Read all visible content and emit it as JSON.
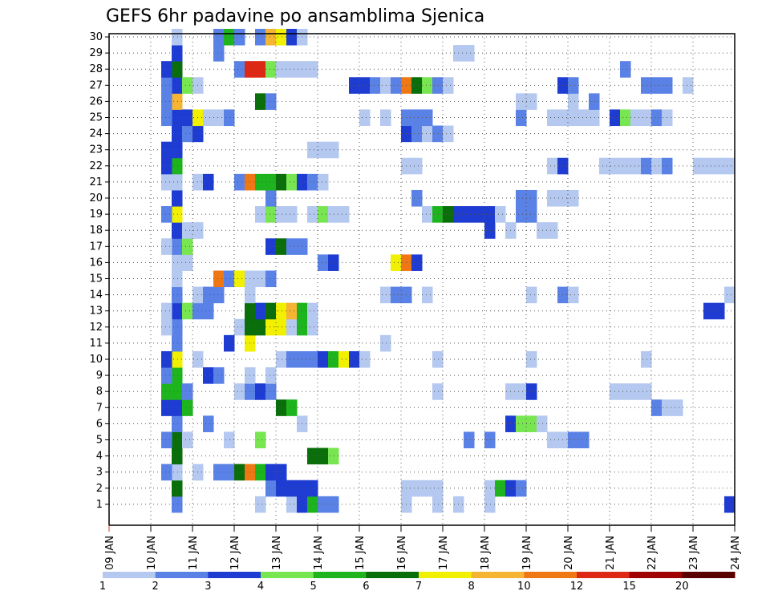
{
  "chart_data": {
    "type": "heatmap",
    "title": "GEFS 6hr padavine po ansamblima Sjenica",
    "x_ticks": [
      "09 JAN",
      "10 JAN",
      "11 JAN",
      "12 JAN",
      "13 JAN",
      "14 JAN",
      "15 JAN",
      "16 JAN",
      "17 JAN",
      "18 JAN",
      "19 JAN",
      "20 JAN",
      "21 JAN",
      "22 JAN",
      "23 JAN",
      "24 JAN"
    ],
    "y_ticks": [
      1,
      2,
      3,
      4,
      5,
      6,
      7,
      8,
      9,
      10,
      11,
      12,
      13,
      14,
      15,
      16,
      17,
      18,
      19,
      20,
      21,
      22,
      23,
      24,
      25,
      26,
      27,
      28,
      29,
      30
    ],
    "xlim": [
      "09 JAN",
      "24 JAN"
    ],
    "ylim": [
      0.5,
      30.5
    ],
    "grid": true,
    "colorbar": {
      "labels": [
        "1",
        "2",
        "3",
        "4",
        "5",
        "6",
        "7",
        "8",
        "10",
        "12",
        "15",
        "20"
      ],
      "colors": [
        "#b4c8f0",
        "#5a82e6",
        "#1e3cd2",
        "#78e650",
        "#1eb41e",
        "#0a6e0a",
        "#f0f000",
        "#f5b432",
        "#f07814",
        "#dc2814",
        "#a00000",
        "#5a0000"
      ]
    },
    "cell_level_ranges": "0-11 = index into colorbar.colors (0 lightest)",
    "cells": [
      [
        10.5,
        1,
        1
      ],
      [
        10.5,
        2,
        5
      ],
      [
        10.5,
        3,
        0
      ],
      [
        10.5,
        4,
        5
      ],
      [
        10.5,
        5,
        5
      ],
      [
        10.5,
        6,
        1
      ],
      [
        10.5,
        7,
        2
      ],
      [
        10.5,
        8,
        4
      ],
      [
        10.5,
        9,
        4
      ],
      [
        10.5,
        10,
        6
      ],
      [
        10.5,
        11,
        1
      ],
      [
        10.5,
        12,
        1
      ],
      [
        10.5,
        13,
        2
      ],
      [
        10.5,
        14,
        1
      ],
      [
        10.5,
        15,
        0
      ],
      [
        10.5,
        16,
        0
      ],
      [
        10.5,
        17,
        1
      ],
      [
        10.5,
        18,
        2
      ],
      [
        10.5,
        19,
        6
      ],
      [
        10.5,
        20,
        2
      ],
      [
        10.5,
        21,
        0
      ],
      [
        10.5,
        22,
        4
      ],
      [
        10.5,
        23,
        2
      ],
      [
        10.5,
        24,
        2
      ],
      [
        10.5,
        25,
        2
      ],
      [
        10.5,
        26,
        7
      ],
      [
        10.5,
        27,
        2
      ],
      [
        10.5,
        28,
        5
      ],
      [
        10.5,
        29,
        2
      ],
      [
        10.5,
        30,
        0
      ],
      [
        10.25,
        3,
        1
      ],
      [
        10.25,
        5,
        1
      ],
      [
        10.25,
        7,
        2
      ],
      [
        10.25,
        8,
        4
      ],
      [
        10.25,
        9,
        1
      ],
      [
        10.25,
        10,
        2
      ],
      [
        10.25,
        12,
        0
      ],
      [
        10.25,
        13,
        0
      ],
      [
        10.25,
        17,
        0
      ],
      [
        10.25,
        19,
        1
      ],
      [
        10.25,
        21,
        0
      ],
      [
        10.25,
        22,
        2
      ],
      [
        10.25,
        23,
        2
      ],
      [
        10.25,
        25,
        1
      ],
      [
        10.25,
        26,
        1
      ],
      [
        10.25,
        27,
        1
      ],
      [
        10.25,
        28,
        2
      ],
      [
        10.75,
        5,
        0
      ],
      [
        10.75,
        7,
        4
      ],
      [
        10.75,
        8,
        1
      ],
      [
        10.75,
        13,
        3
      ],
      [
        10.75,
        16,
        0
      ],
      [
        10.75,
        17,
        3
      ],
      [
        10.75,
        18,
        0
      ],
      [
        10.75,
        24,
        1
      ],
      [
        10.75,
        25,
        2
      ],
      [
        10.75,
        27,
        3
      ],
      [
        11.0,
        3,
        0
      ],
      [
        11.0,
        10,
        0
      ],
      [
        11.0,
        13,
        1
      ],
      [
        11.0,
        14,
        0
      ],
      [
        11.0,
        18,
        0
      ],
      [
        11.0,
        21,
        0
      ],
      [
        11.0,
        24,
        2
      ],
      [
        11.0,
        25,
        6
      ],
      [
        11.0,
        27,
        0
      ],
      [
        11.25,
        6,
        1
      ],
      [
        11.25,
        9,
        2
      ],
      [
        11.25,
        13,
        1
      ],
      [
        11.25,
        14,
        1
      ],
      [
        11.25,
        21,
        2
      ],
      [
        11.25,
        25,
        0
      ],
      [
        11.5,
        3,
        1
      ],
      [
        11.5,
        9,
        1
      ],
      [
        11.5,
        14,
        1
      ],
      [
        11.5,
        15,
        8
      ],
      [
        11.5,
        25,
        0
      ],
      [
        11.5,
        29,
        1
      ],
      [
        11.5,
        30,
        1
      ],
      [
        11.75,
        5,
        0
      ],
      [
        11.75,
        3,
        1
      ],
      [
        11.75,
        11,
        2
      ],
      [
        11.75,
        15,
        1
      ],
      [
        11.75,
        25,
        1
      ],
      [
        11.75,
        30,
        4
      ],
      [
        12.0,
        3,
        5
      ],
      [
        12.0,
        8,
        0
      ],
      [
        12.0,
        12,
        0
      ],
      [
        12.0,
        15,
        6
      ],
      [
        12.0,
        21,
        1
      ],
      [
        12.0,
        28,
        1
      ],
      [
        12.0,
        30,
        1
      ],
      [
        12.25,
        3,
        8
      ],
      [
        12.25,
        8,
        1
      ],
      [
        12.25,
        9,
        0
      ],
      [
        12.25,
        11,
        6
      ],
      [
        12.25,
        12,
        5
      ],
      [
        12.25,
        13,
        5
      ],
      [
        12.25,
        14,
        0
      ],
      [
        12.25,
        15,
        0
      ],
      [
        12.25,
        21,
        8
      ],
      [
        12.25,
        28,
        9
      ],
      [
        12.5,
        1,
        0
      ],
      [
        12.5,
        3,
        4
      ],
      [
        12.5,
        5,
        3
      ],
      [
        12.5,
        8,
        2
      ],
      [
        12.5,
        12,
        5
      ],
      [
        12.5,
        13,
        2
      ],
      [
        12.5,
        15,
        0
      ],
      [
        12.5,
        19,
        0
      ],
      [
        12.5,
        21,
        4
      ],
      [
        12.5,
        26,
        5
      ],
      [
        12.5,
        28,
        9
      ],
      [
        12.5,
        30,
        1
      ],
      [
        12.75,
        2,
        1
      ],
      [
        12.75,
        3,
        2
      ],
      [
        12.75,
        8,
        1
      ],
      [
        12.75,
        9,
        0
      ],
      [
        12.75,
        12,
        6
      ],
      [
        12.75,
        13,
        5
      ],
      [
        12.75,
        15,
        1
      ],
      [
        12.75,
        17,
        2
      ],
      [
        12.75,
        19,
        3
      ],
      [
        12.75,
        20,
        1
      ],
      [
        12.75,
        21,
        4
      ],
      [
        12.75,
        26,
        1
      ],
      [
        12.75,
        28,
        3
      ],
      [
        12.75,
        30,
        7
      ],
      [
        13.0,
        2,
        2
      ],
      [
        13.0,
        3,
        2
      ],
      [
        13.0,
        7,
        5
      ],
      [
        13.0,
        10,
        0
      ],
      [
        13.0,
        12,
        6
      ],
      [
        13.0,
        13,
        6
      ],
      [
        13.0,
        17,
        5
      ],
      [
        13.0,
        19,
        0
      ],
      [
        13.0,
        21,
        5
      ],
      [
        13.0,
        28,
        0
      ],
      [
        13.0,
        30,
        6
      ],
      [
        13.25,
        1,
        0
      ],
      [
        13.25,
        2,
        2
      ],
      [
        13.25,
        7,
        4
      ],
      [
        13.25,
        10,
        1
      ],
      [
        13.25,
        12,
        0
      ],
      [
        13.25,
        13,
        7
      ],
      [
        13.25,
        17,
        1
      ],
      [
        13.25,
        19,
        0
      ],
      [
        13.25,
        21,
        3
      ],
      [
        13.25,
        28,
        0
      ],
      [
        13.25,
        30,
        2
      ],
      [
        13.5,
        1,
        2
      ],
      [
        13.5,
        2,
        2
      ],
      [
        13.5,
        6,
        0
      ],
      [
        13.5,
        10,
        1
      ],
      [
        13.5,
        12,
        4
      ],
      [
        13.5,
        13,
        4
      ],
      [
        13.5,
        17,
        1
      ],
      [
        13.5,
        21,
        2
      ],
      [
        13.5,
        28,
        0
      ],
      [
        13.5,
        30,
        0
      ],
      [
        13.75,
        1,
        4
      ],
      [
        13.75,
        2,
        2
      ],
      [
        13.75,
        4,
        5
      ],
      [
        13.75,
        10,
        1
      ],
      [
        13.75,
        12,
        0
      ],
      [
        13.75,
        13,
        0
      ],
      [
        13.75,
        19,
        0
      ],
      [
        13.75,
        21,
        1
      ],
      [
        13.75,
        23,
        0
      ],
      [
        13.75,
        28,
        0
      ],
      [
        14.0,
        1,
        1
      ],
      [
        14.0,
        4,
        5
      ],
      [
        14.0,
        10,
        2
      ],
      [
        14.0,
        16,
        1
      ],
      [
        14.0,
        19,
        3
      ],
      [
        14.0,
        21,
        0
      ],
      [
        14.0,
        23,
        0
      ],
      [
        14.25,
        1,
        1
      ],
      [
        14.25,
        4,
        3
      ],
      [
        14.25,
        10,
        4
      ],
      [
        14.25,
        16,
        2
      ],
      [
        14.25,
        19,
        0
      ],
      [
        14.25,
        23,
        0
      ],
      [
        14.5,
        10,
        6
      ],
      [
        14.5,
        19,
        0
      ],
      [
        14.75,
        10,
        2
      ],
      [
        14.75,
        27,
        2
      ],
      [
        15.0,
        10,
        0
      ],
      [
        15.0,
        25,
        0
      ],
      [
        15.0,
        27,
        2
      ],
      [
        15.25,
        27,
        1
      ],
      [
        15.5,
        11,
        0
      ],
      [
        15.5,
        14,
        0
      ],
      [
        15.5,
        25,
        0
      ],
      [
        15.5,
        27,
        0
      ],
      [
        15.75,
        14,
        1
      ],
      [
        15.75,
        16,
        6
      ],
      [
        15.75,
        27,
        1
      ],
      [
        16.0,
        1,
        0
      ],
      [
        16.0,
        2,
        0
      ],
      [
        16.0,
        14,
        1
      ],
      [
        16.0,
        16,
        8
      ],
      [
        16.0,
        22,
        0
      ],
      [
        16.0,
        24,
        2
      ],
      [
        16.0,
        25,
        1
      ],
      [
        16.0,
        27,
        8
      ],
      [
        16.25,
        2,
        0
      ],
      [
        16.25,
        16,
        2
      ],
      [
        16.25,
        20,
        1
      ],
      [
        16.25,
        22,
        0
      ],
      [
        16.25,
        24,
        1
      ],
      [
        16.25,
        25,
        1
      ],
      [
        16.25,
        27,
        5
      ],
      [
        16.5,
        2,
        0
      ],
      [
        16.5,
        14,
        0
      ],
      [
        16.5,
        19,
        0
      ],
      [
        16.5,
        24,
        0
      ],
      [
        16.5,
        25,
        1
      ],
      [
        16.5,
        27,
        3
      ],
      [
        16.75,
        1,
        0
      ],
      [
        16.75,
        2,
        0
      ],
      [
        16.75,
        8,
        0
      ],
      [
        16.75,
        10,
        0
      ],
      [
        16.75,
        19,
        4
      ],
      [
        16.75,
        24,
        1
      ],
      [
        16.75,
        27,
        1
      ],
      [
        17.0,
        19,
        5
      ],
      [
        17.0,
        24,
        0
      ],
      [
        17.0,
        27,
        0
      ],
      [
        17.25,
        1,
        0
      ],
      [
        17.25,
        19,
        2
      ],
      [
        17.25,
        29,
        0
      ],
      [
        17.5,
        5,
        1
      ],
      [
        17.5,
        19,
        2
      ],
      [
        17.5,
        29,
        0
      ],
      [
        17.75,
        19,
        2
      ],
      [
        18.0,
        1,
        0
      ],
      [
        18.0,
        2,
        0
      ],
      [
        18.0,
        5,
        1
      ],
      [
        18.0,
        18,
        2
      ],
      [
        18.0,
        19,
        2
      ],
      [
        18.25,
        2,
        4
      ],
      [
        18.25,
        19,
        0
      ],
      [
        18.5,
        2,
        2
      ],
      [
        18.5,
        6,
        2
      ],
      [
        18.5,
        8,
        0
      ],
      [
        18.5,
        18,
        0
      ],
      [
        18.75,
        2,
        1
      ],
      [
        18.75,
        6,
        3
      ],
      [
        18.75,
        8,
        0
      ],
      [
        18.75,
        19,
        1
      ],
      [
        18.75,
        20,
        1
      ],
      [
        18.75,
        25,
        1
      ],
      [
        18.75,
        26,
        0
      ],
      [
        19.0,
        6,
        3
      ],
      [
        19.0,
        8,
        2
      ],
      [
        19.0,
        10,
        0
      ],
      [
        19.0,
        14,
        0
      ],
      [
        19.0,
        19,
        1
      ],
      [
        19.0,
        20,
        1
      ],
      [
        19.0,
        26,
        0
      ],
      [
        19.25,
        6,
        0
      ],
      [
        19.25,
        18,
        0
      ],
      [
        19.5,
        5,
        0
      ],
      [
        19.5,
        18,
        0
      ],
      [
        19.5,
        20,
        0
      ],
      [
        19.5,
        22,
        0
      ],
      [
        19.5,
        25,
        0
      ],
      [
        19.75,
        5,
        0
      ],
      [
        19.75,
        14,
        1
      ],
      [
        19.75,
        20,
        0
      ],
      [
        19.75,
        22,
        2
      ],
      [
        19.75,
        25,
        0
      ],
      [
        19.75,
        27,
        2
      ],
      [
        20.0,
        5,
        1
      ],
      [
        20.0,
        14,
        0
      ],
      [
        20.0,
        20,
        0
      ],
      [
        20.0,
        25,
        0
      ],
      [
        20.0,
        26,
        0
      ],
      [
        20.0,
        27,
        1
      ],
      [
        20.25,
        5,
        1
      ],
      [
        20.25,
        25,
        0
      ],
      [
        20.5,
        25,
        0
      ],
      [
        20.5,
        26,
        1
      ],
      [
        20.75,
        22,
        0
      ],
      [
        21.0,
        8,
        0
      ],
      [
        21.0,
        22,
        0
      ],
      [
        21.0,
        25,
        2
      ],
      [
        21.25,
        8,
        0
      ],
      [
        21.25,
        22,
        0
      ],
      [
        21.25,
        25,
        3
      ],
      [
        21.25,
        28,
        1
      ],
      [
        21.5,
        8,
        0
      ],
      [
        21.5,
        22,
        0
      ],
      [
        21.5,
        25,
        0
      ],
      [
        21.75,
        8,
        0
      ],
      [
        21.75,
        10,
        0
      ],
      [
        21.75,
        22,
        1
      ],
      [
        21.75,
        25,
        0
      ],
      [
        21.75,
        27,
        1
      ],
      [
        22.0,
        7,
        1
      ],
      [
        22.0,
        22,
        0
      ],
      [
        22.0,
        25,
        1
      ],
      [
        22.0,
        27,
        1
      ],
      [
        22.25,
        7,
        0
      ],
      [
        22.25,
        22,
        1
      ],
      [
        22.25,
        25,
        0
      ],
      [
        22.25,
        27,
        1
      ],
      [
        22.5,
        7,
        0
      ],
      [
        22.75,
        27,
        0
      ],
      [
        23.0,
        22,
        0
      ],
      [
        23.25,
        22,
        0
      ],
      [
        23.5,
        22,
        0
      ],
      [
        23.75,
        22,
        0
      ],
      [
        23.25,
        13,
        2
      ],
      [
        23.5,
        13,
        2
      ],
      [
        23.75,
        1,
        2
      ],
      [
        23.75,
        14,
        0
      ]
    ]
  }
}
